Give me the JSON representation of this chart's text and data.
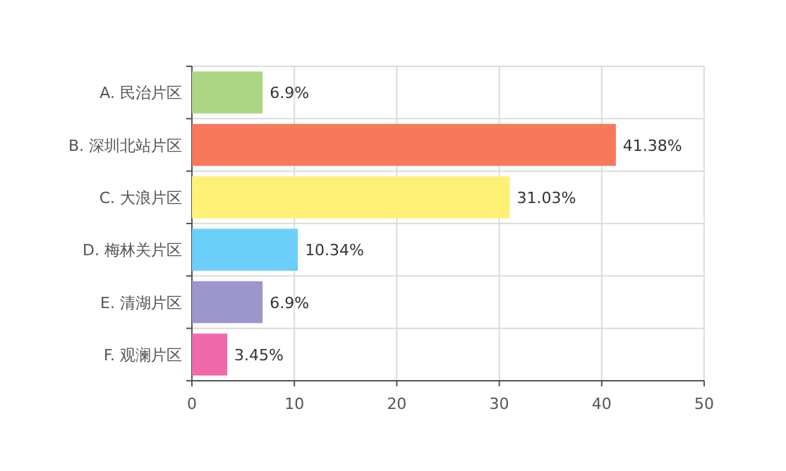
{
  "chart_data": {
    "type": "bar",
    "orientation": "horizontal",
    "categories": [
      "A. 民治片区",
      "B. 深圳北站片区",
      "C. 大浪片区",
      "D. 梅林关片区",
      "E. 清湖片区",
      "F. 观澜片区"
    ],
    "values": [
      6.9,
      41.38,
      31.03,
      10.34,
      6.9,
      3.45
    ],
    "colors": [
      "#acd685",
      "#f7795b",
      "#fff176",
      "#6bcffa",
      "#9b97cd",
      "#f06aaa"
    ],
    "value_labels": [
      "6.9%",
      "41.38%",
      "31.03%",
      "10.34%",
      "6.9%",
      "3.45%"
    ],
    "xlim": [
      0,
      50
    ],
    "xticks": [
      0,
      10,
      20,
      30,
      40,
      50
    ],
    "grid": true
  }
}
